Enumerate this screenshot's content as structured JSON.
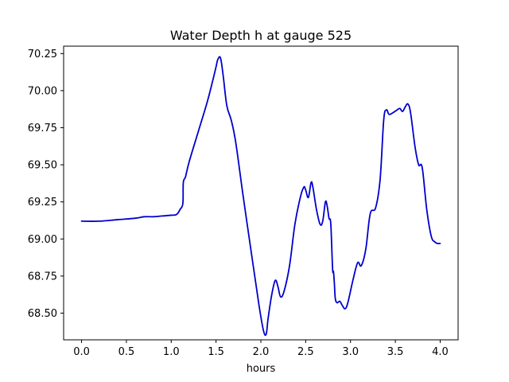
{
  "chart_data": {
    "type": "line",
    "title": "Water Depth h at gauge 525",
    "xlabel": "hours",
    "ylabel": "",
    "xlim": [
      -0.2,
      4.2
    ],
    "ylim": [
      68.32,
      70.3
    ],
    "xticks": [
      0.0,
      0.5,
      1.0,
      1.5,
      2.0,
      2.5,
      3.0,
      3.5,
      4.0
    ],
    "xtick_labels": [
      "0.0",
      "0.5",
      "1.0",
      "1.5",
      "2.0",
      "2.5",
      "3.0",
      "3.5",
      "4.0"
    ],
    "yticks": [
      68.5,
      68.75,
      69.0,
      69.25,
      69.5,
      69.75,
      70.0,
      70.25
    ],
    "ytick_labels": [
      "68.50",
      "68.75",
      "69.00",
      "69.25",
      "69.50",
      "69.75",
      "70.00",
      "70.25"
    ],
    "grid": false,
    "line_color": "#0000cc",
    "series": [
      {
        "x": [
          0.0,
          0.2,
          0.4,
          0.6,
          0.7,
          0.8,
          0.9,
          1.0,
          1.06,
          1.1,
          1.13,
          1.135,
          1.16,
          1.2,
          1.3,
          1.4,
          1.46,
          1.5,
          1.52,
          1.55,
          1.58,
          1.62,
          1.67,
          1.72,
          1.8,
          1.9,
          1.98,
          2.03,
          2.06,
          2.08,
          2.12,
          2.16,
          2.19,
          2.22,
          2.26,
          2.32,
          2.38,
          2.44,
          2.48,
          2.5,
          2.53,
          2.56,
          2.58,
          2.62,
          2.66,
          2.69,
          2.72,
          2.74,
          2.76,
          2.78,
          2.8,
          2.81,
          2.82,
          2.83,
          2.85,
          2.88,
          2.91,
          2.94,
          2.97,
          3.03,
          3.08,
          3.12,
          3.17,
          3.22,
          3.28,
          3.33,
          3.37,
          3.4,
          3.43,
          3.47,
          3.52,
          3.55,
          3.58,
          3.61,
          3.64,
          3.67,
          3.72,
          3.76,
          3.8,
          3.85,
          3.9,
          3.94,
          3.97,
          4.0
        ],
        "y": [
          69.12,
          69.12,
          69.13,
          69.14,
          69.15,
          69.15,
          69.155,
          69.16,
          69.165,
          69.2,
          69.24,
          69.38,
          69.42,
          69.52,
          69.72,
          69.92,
          70.06,
          70.16,
          70.21,
          70.22,
          70.1,
          69.9,
          69.8,
          69.65,
          69.3,
          68.88,
          68.55,
          68.38,
          68.36,
          68.46,
          68.62,
          68.72,
          68.68,
          68.61,
          68.65,
          68.82,
          69.1,
          69.28,
          69.35,
          69.33,
          69.28,
          69.38,
          69.35,
          69.2,
          69.1,
          69.12,
          69.25,
          69.22,
          69.14,
          69.1,
          68.8,
          68.78,
          68.7,
          68.6,
          68.57,
          68.58,
          68.55,
          68.53,
          68.57,
          68.73,
          68.84,
          68.82,
          68.93,
          69.17,
          69.21,
          69.4,
          69.8,
          69.87,
          69.84,
          69.85,
          69.87,
          69.88,
          69.86,
          69.89,
          69.91,
          69.85,
          69.62,
          69.5,
          69.48,
          69.2,
          69.02,
          68.98,
          68.97,
          68.97
        ]
      }
    ]
  }
}
